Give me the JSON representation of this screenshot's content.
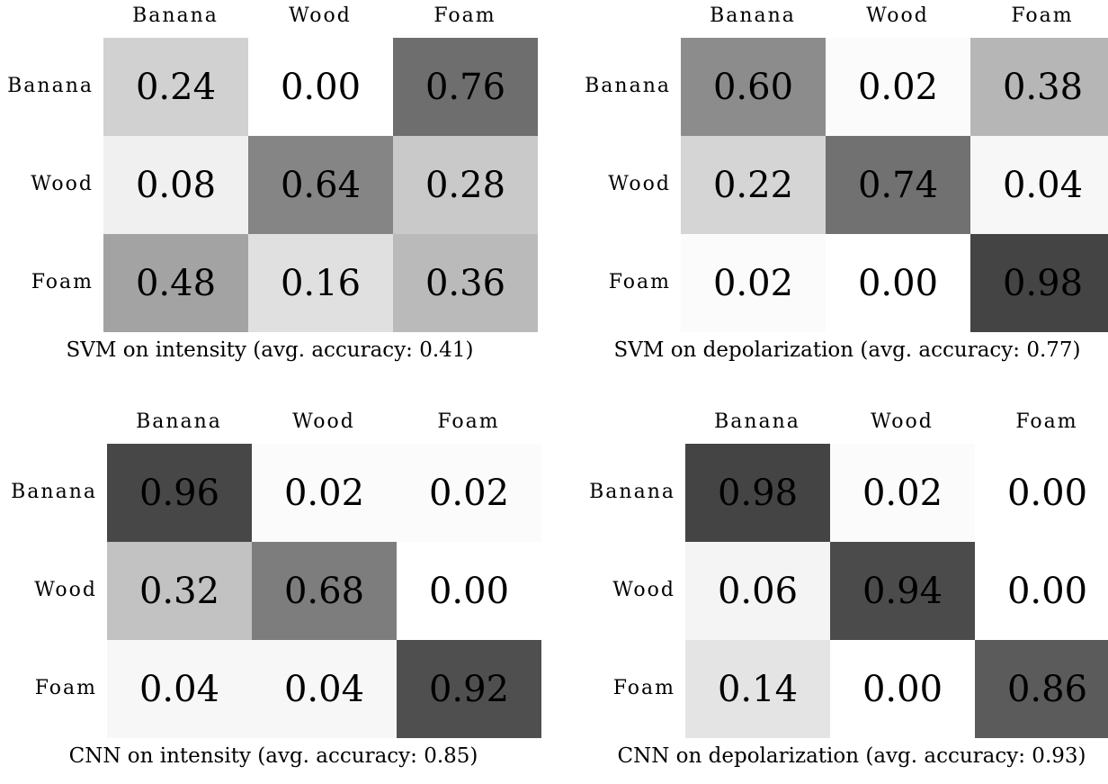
{
  "chart_data": [
    {
      "type": "heatmap",
      "title": "SVM on intensity (avg. accuracy: 0.41)",
      "columns": [
        "Banana",
        "Wood",
        "Foam"
      ],
      "rows": [
        "Banana",
        "Wood",
        "Foam"
      ],
      "values": [
        [
          0.24,
          0.0,
          0.76
        ],
        [
          0.08,
          0.64,
          0.28
        ],
        [
          0.48,
          0.16,
          0.36
        ]
      ],
      "labels": [
        [
          "0.24",
          "0.00",
          "0.76"
        ],
        [
          "0.08",
          "0.64",
          "0.28"
        ],
        [
          "0.48",
          "0.16",
          "0.36"
        ]
      ],
      "colormap": "grayscale"
    },
    {
      "type": "heatmap",
      "title": "SVM on depolarization (avg. accuracy: 0.77)",
      "columns": [
        "Banana",
        "Wood",
        "Foam"
      ],
      "rows": [
        "Banana",
        "Wood",
        "Foam"
      ],
      "values": [
        [
          0.6,
          0.02,
          0.38
        ],
        [
          0.22,
          0.74,
          0.04
        ],
        [
          0.02,
          0.0,
          0.98
        ]
      ],
      "labels": [
        [
          "0.60",
          "0.02",
          "0.38"
        ],
        [
          "0.22",
          "0.74",
          "0.04"
        ],
        [
          "0.02",
          "0.00",
          "0.98"
        ]
      ],
      "colormap": "grayscale"
    },
    {
      "type": "heatmap",
      "title": "CNN on intensity (avg. accuracy: 0.85)",
      "columns": [
        "Banana",
        "Wood",
        "Foam"
      ],
      "rows": [
        "Banana",
        "Wood",
        "Foam"
      ],
      "values": [
        [
          0.96,
          0.02,
          0.02
        ],
        [
          0.32,
          0.68,
          0.0
        ],
        [
          0.04,
          0.04,
          0.92
        ]
      ],
      "labels": [
        [
          "0.96",
          "0.02",
          "0.02"
        ],
        [
          "0.32",
          "0.68",
          "0.00"
        ],
        [
          "0.04",
          "0.04",
          "0.92"
        ]
      ],
      "colormap": "grayscale"
    },
    {
      "type": "heatmap",
      "title": "CNN on depolarization (avg. accuracy: 0.93)",
      "columns": [
        "Banana",
        "Wood",
        "Foam"
      ],
      "rows": [
        "Banana",
        "Wood",
        "Foam"
      ],
      "values": [
        [
          0.98,
          0.02,
          0.0
        ],
        [
          0.06,
          0.94,
          0.0
        ],
        [
          0.14,
          0.0,
          0.86
        ]
      ],
      "labels": [
        [
          "0.98",
          "0.02",
          "0.00"
        ],
        [
          "0.06",
          "0.94",
          "0.00"
        ],
        [
          "0.14",
          "0.00",
          "0.86"
        ]
      ],
      "colormap": "grayscale"
    }
  ]
}
